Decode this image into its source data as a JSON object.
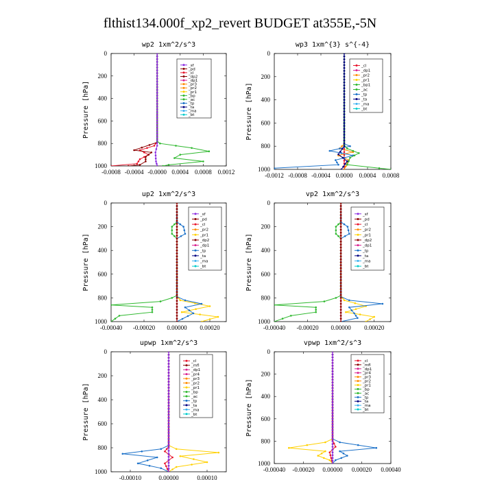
{
  "title": "flthist134.000f_xp2_revert  BUDGET at355E,-5N",
  "colors": {
    "purple": "#8a2be2",
    "darkred": "#8b0000",
    "red": "#e8142b",
    "magenta": "#d9208f",
    "orange": "#ff8c00",
    "yellow": "#ffd000",
    "green": "#2eb82e",
    "blue": "#1a70c8",
    "lightblue": "#3ab0f0",
    "cyan": "#00cccc",
    "navy": "#000080"
  },
  "chart_data": [
    {
      "type": "line",
      "title": "wp2   1xm^2/s^3",
      "ylabel": "Pressure [hPa]",
      "xlim": [
        -0.0008,
        0.0012
      ],
      "ylim": [
        1000,
        0
      ],
      "xticklabels": [
        "-0.0008",
        "-0.0004",
        "-0.0000",
        "0.0004",
        "0.0008",
        "0.0012"
      ],
      "yticklabels": [
        "0",
        "200",
        "400",
        "600",
        "800",
        "1000"
      ],
      "legend": [
        "_sf",
        "_pd",
        "_cl",
        "_dp2",
        "_dp1",
        "_pr3",
        "_pr2",
        "_pr1",
        "_bp",
        "_ac",
        "_tp",
        "_ta",
        "_ma",
        "_bt"
      ],
      "series": [
        {
          "name": "_cl",
          "color": "red",
          "points": [
            [
              0,
              0
            ],
            [
              0,
              780
            ],
            [
              -5e-05,
              820
            ],
            [
              -0.0003,
              860
            ],
            [
              -0.00015,
              900
            ],
            [
              -0.0003,
              940
            ],
            [
              -0.00035,
              980
            ],
            [
              -0.0008,
              1000
            ]
          ]
        },
        {
          "name": "_dp2",
          "color": "darkred",
          "points": [
            [
              0,
              0
            ],
            [
              0,
              790
            ],
            [
              -0.0004,
              860
            ],
            [
              -0.0001,
              880
            ],
            [
              -0.0002,
              920
            ],
            [
              -0.0002,
              960
            ],
            [
              -0.0003,
              990
            ],
            [
              -0.0005,
              1000
            ]
          ]
        },
        {
          "name": "_pr1",
          "color": "green",
          "points": [
            [
              0,
              0
            ],
            [
              0,
              780
            ],
            [
              5e-05,
              800
            ],
            [
              0.0006,
              840
            ],
            [
              0.0009,
              870
            ],
            [
              0.0004,
              900
            ],
            [
              0.0003,
              930
            ],
            [
              0.0008,
              960
            ],
            [
              0.0002,
              990
            ],
            [
              0.0001,
              1000
            ]
          ]
        },
        {
          "name": "_bp",
          "color": "purple",
          "points": [
            [
              0,
              0
            ],
            [
              0,
              820
            ],
            [
              -3e-05,
              880
            ],
            [
              -2e-05,
              960
            ],
            [
              0,
              1000
            ]
          ]
        }
      ]
    },
    {
      "type": "line",
      "title": "wp3   1xm^{3} s^{-4}",
      "ylabel": "Pressure [hPa]",
      "xlim": [
        -0.0012,
        0.0008
      ],
      "ylim": [
        1000,
        0
      ],
      "xticklabels": [
        "-0.0012",
        "-0.0008",
        "-0.0004",
        "0.0000",
        "0.0004",
        "0.0008"
      ],
      "yticklabels": [
        "0",
        "200",
        "400",
        "600",
        "800",
        "1000"
      ],
      "legend": [
        "_cl",
        "_dp1",
        "_pr2",
        "_pr1",
        "_bp1",
        "_ac",
        "_tp",
        "_ta",
        "_ma",
        "_bt"
      ],
      "series": [
        {
          "name": "_cl",
          "color": "red",
          "points": [
            [
              0,
              0
            ],
            [
              0,
              1000
            ]
          ]
        },
        {
          "name": "_pr2",
          "color": "orange",
          "points": [
            [
              0,
              0
            ],
            [
              0,
              780
            ],
            [
              -8e-05,
              820
            ],
            [
              0.00015,
              850
            ],
            [
              -0.0001,
              880
            ],
            [
              8e-05,
              920
            ],
            [
              0,
              1000
            ]
          ]
        },
        {
          "name": "_tp",
          "color": "blue",
          "points": [
            [
              0,
              0
            ],
            [
              0,
              780
            ],
            [
              0.0001,
              800
            ],
            [
              -0.00025,
              840
            ],
            [
              0.00015,
              880
            ],
            [
              -0.00015,
              920
            ],
            [
              -0.0001,
              960
            ],
            [
              -0.0012,
              990
            ],
            [
              -0.0012,
              1000
            ]
          ]
        },
        {
          "name": "_ac",
          "color": "green",
          "points": [
            [
              0,
              0
            ],
            [
              0,
              790
            ],
            [
              5e-05,
              820
            ],
            [
              0.00025,
              860
            ],
            [
              0.0001,
              900
            ],
            [
              5e-05,
              960
            ],
            [
              0.0006,
              990
            ],
            [
              0.0008,
              1000
            ]
          ]
        },
        {
          "name": "_ta",
          "color": "navy",
          "points": [
            [
              0,
              0
            ],
            [
              0,
              800
            ],
            [
              -0.0001,
              870
            ],
            [
              5e-05,
              930
            ],
            [
              -5e-05,
              1000
            ]
          ]
        }
      ]
    },
    {
      "type": "line",
      "title": "up2   1xm^2/s^3",
      "ylabel": "Pressure [hPa]",
      "xlim": [
        -0.0004,
        0.0003
      ],
      "ylim": [
        1000,
        0
      ],
      "xticklabels": [
        "-0.00040",
        "-0.00020",
        "0.00000",
        "0.00020"
      ],
      "yticklabels": [
        "0",
        "200",
        "400",
        "600",
        "800",
        "1000"
      ],
      "legend": [
        "_sf",
        "_pd",
        "_cl",
        "_pr2",
        "_pr1",
        "_dp2",
        "_dp1",
        "_tp",
        "_ta",
        "_ma",
        "_bt"
      ],
      "series": [
        {
          "name": "_pr1",
          "color": "green",
          "points": [
            [
              0,
              0
            ],
            [
              0,
              160
            ],
            [
              -3e-05,
              200
            ],
            [
              -3e-05,
              260
            ],
            [
              0,
              300
            ],
            [
              0,
              780
            ],
            [
              -3e-05,
              800
            ],
            [
              -0.0001,
              830
            ],
            [
              -0.0004,
              860
            ],
            [
              -0.00015,
              880
            ],
            [
              -0.00015,
              920
            ],
            [
              -0.00035,
              950
            ],
            [
              -0.0004,
              1000
            ]
          ]
        },
        {
          "name": "_pr2",
          "color": "yellow",
          "points": [
            [
              0,
              0
            ],
            [
              0,
              780
            ],
            [
              2e-05,
              820
            ],
            [
              0.0002,
              870
            ],
            [
              3e-05,
              920
            ],
            [
              0.00025,
              960
            ],
            [
              0.00015,
              1000
            ]
          ]
        },
        {
          "name": "_tp",
          "color": "blue",
          "points": [
            [
              0,
              0
            ],
            [
              0,
              160
            ],
            [
              4e-05,
              200
            ],
            [
              5e-05,
              260
            ],
            [
              0,
              300
            ],
            [
              0,
              790
            ],
            [
              5e-05,
              820
            ],
            [
              0.00015,
              850
            ],
            [
              5e-05,
              880
            ],
            [
              0.0001,
              930
            ],
            [
              0,
              1000
            ]
          ]
        },
        {
          "name": "_cl",
          "color": "red",
          "points": [
            [
              0,
              0
            ],
            [
              0,
              1000
            ]
          ]
        },
        {
          "name": "_dp2",
          "color": "darkred",
          "points": [
            [
              0,
              0
            ],
            [
              0,
              1000
            ]
          ]
        }
      ]
    },
    {
      "type": "line",
      "title": "vp2   1xm^2/s^3",
      "ylabel": "Pressure [hPa]",
      "xlim": [
        -0.0004,
        0.0003
      ],
      "ylim": [
        1000,
        0
      ],
      "xticklabels": [
        "-0.00040",
        "-0.00020",
        "0.00000",
        "0.00020"
      ],
      "yticklabels": [
        "0",
        "200",
        "400",
        "600",
        "800",
        "1000"
      ],
      "legend": [
        "_sf",
        "_pd",
        "_cl",
        "_pr2",
        "_pr1",
        "_dp2",
        "_dp1",
        "_tp",
        "_ta",
        "_ma",
        "_bt"
      ],
      "series": [
        {
          "name": "_pr1",
          "color": "green",
          "points": [
            [
              0,
              0
            ],
            [
              0,
              160
            ],
            [
              -3e-05,
              200
            ],
            [
              -3e-05,
              260
            ],
            [
              0,
              300
            ],
            [
              0,
              780
            ],
            [
              -3e-05,
              800
            ],
            [
              -0.0001,
              830
            ],
            [
              -0.0004,
              860
            ],
            [
              -0.00015,
              880
            ],
            [
              -0.00015,
              920
            ],
            [
              -0.0003,
              950
            ],
            [
              -0.0004,
              1000
            ]
          ]
        },
        {
          "name": "_pr2",
          "color": "yellow",
          "points": [
            [
              0,
              0
            ],
            [
              0,
              780
            ],
            [
              2e-05,
              820
            ],
            [
              0.00015,
              870
            ],
            [
              3e-05,
              920
            ],
            [
              0.0002,
              960
            ],
            [
              0.00015,
              1000
            ]
          ]
        },
        {
          "name": "_tp",
          "color": "blue",
          "points": [
            [
              0,
              0
            ],
            [
              0,
              160
            ],
            [
              4e-05,
              200
            ],
            [
              5e-05,
              260
            ],
            [
              0,
              300
            ],
            [
              0,
              790
            ],
            [
              5e-05,
              820
            ],
            [
              0.00025,
              850
            ],
            [
              5e-05,
              880
            ],
            [
              8e-05,
              930
            ],
            [
              0.0001,
              970
            ],
            [
              0,
              1000
            ]
          ]
        },
        {
          "name": "_cl",
          "color": "red",
          "points": [
            [
              0,
              0
            ],
            [
              0,
              1000
            ]
          ]
        },
        {
          "name": "_dp2",
          "color": "darkred",
          "points": [
            [
              0,
              0
            ],
            [
              0,
              1000
            ]
          ]
        }
      ]
    },
    {
      "type": "line",
      "title": "upwp   1xm^2/s^3",
      "ylabel": "Pressure [hPa]",
      "xlim": [
        -0.00015,
        0.00015
      ],
      "ylim": [
        1000,
        0
      ],
      "xticklabels": [
        "-0.00010",
        "0.00000",
        "0.00010"
      ],
      "yticklabels": [
        "0",
        "200",
        "400",
        "600",
        "800",
        "1000"
      ],
      "legend": [
        "_cl",
        "_mfl",
        "_dp1",
        "_pr4",
        "_pr3",
        "_pr2",
        "_pr1",
        "_bp",
        "_ac",
        "_tp",
        "_ta",
        "_ma",
        "_bt"
      ],
      "series": [
        {
          "name": "_pr1",
          "color": "yellow",
          "points": [
            [
              0,
              0
            ],
            [
              0,
              780
            ],
            [
              2e-05,
              810
            ],
            [
              0.00013,
              840
            ],
            [
              3e-05,
              870
            ],
            [
              0.0001,
              920
            ],
            [
              2e-05,
              960
            ],
            [
              0,
              1000
            ]
          ]
        },
        {
          "name": "_tp",
          "color": "blue",
          "points": [
            [
              0,
              0
            ],
            [
              0,
              780
            ],
            [
              -2e-05,
              810
            ],
            [
              -0.00012,
              850
            ],
            [
              -3e-05,
              880
            ],
            [
              -8e-05,
              930
            ],
            [
              -2e-05,
              970
            ],
            [
              0,
              1000
            ]
          ]
        },
        {
          "name": "_cl",
          "color": "red",
          "points": [
            [
              0,
              0
            ],
            [
              0,
              790
            ],
            [
              -1e-05,
              830
            ],
            [
              1e-05,
              880
            ],
            [
              -1e-05,
              930
            ],
            [
              0,
              1000
            ]
          ]
        },
        {
          "name": "_mfl",
          "color": "darkred",
          "points": [
            [
              0,
              0
            ],
            [
              0,
              1000
            ]
          ]
        },
        {
          "name": "_dp1",
          "color": "purple",
          "points": [
            [
              0,
              0
            ],
            [
              0,
              1000
            ]
          ]
        }
      ]
    },
    {
      "type": "line",
      "title": "vpwp   1xm^2/s^3",
      "ylabel": "Pressure [hPa]",
      "xlim": [
        -0.0004,
        0.0004
      ],
      "ylim": [
        1000,
        0
      ],
      "xticklabels": [
        "-0.00040",
        "-0.00020",
        "0.00000",
        "0.00020",
        "0.00040"
      ],
      "yticklabels": [
        "0",
        "200",
        "400",
        "600",
        "800",
        "1000"
      ],
      "legend": [
        "_cl",
        "_mfl",
        "_dp1",
        "_pr4",
        "_pr3",
        "_pr2",
        "_pr1",
        "_bp",
        "_ac",
        "_tp",
        "_ta",
        "_ma",
        "_bt"
      ],
      "series": [
        {
          "name": "_pr1",
          "color": "yellow",
          "points": [
            [
              0,
              0
            ],
            [
              0,
              780
            ],
            [
              -5e-05,
              810
            ],
            [
              -0.0003,
              860
            ],
            [
              -5e-05,
              890
            ],
            [
              -0.0001,
              930
            ],
            [
              -2e-05,
              970
            ],
            [
              0,
              1000
            ]
          ]
        },
        {
          "name": "_tp",
          "color": "blue",
          "points": [
            [
              0,
              0
            ],
            [
              0,
              780
            ],
            [
              5e-05,
              810
            ],
            [
              0.0003,
              860
            ],
            [
              5e-05,
              890
            ],
            [
              0.0001,
              930
            ],
            [
              2e-05,
              970
            ],
            [
              0,
              1000
            ]
          ]
        },
        {
          "name": "_cl",
          "color": "red",
          "points": [
            [
              0,
              0
            ],
            [
              0,
              790
            ],
            [
              2e-05,
              850
            ],
            [
              -2e-05,
              900
            ],
            [
              0,
              1000
            ]
          ]
        },
        {
          "name": "_mfl",
          "color": "darkred",
          "points": [
            [
              0,
              0
            ],
            [
              0,
              1000
            ]
          ]
        },
        {
          "name": "_dp1",
          "color": "purple",
          "points": [
            [
              0,
              0
            ],
            [
              0,
              1000
            ]
          ]
        }
      ]
    }
  ]
}
